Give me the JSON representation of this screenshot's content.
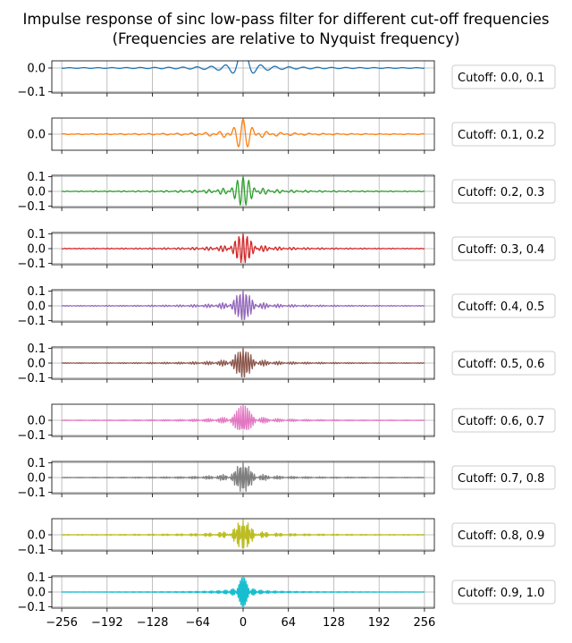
{
  "chart_data": {
    "type": "line",
    "title": "Impulse response of sinc low-pass filter for different cut-off frequencies\n(Frequencies are relative to Nyquist frequency)",
    "xlabel": "",
    "ylabel": "",
    "xlim": [
      -270,
      270
    ],
    "xticks": [
      -256,
      -192,
      -128,
      -64,
      0,
      64,
      128,
      192,
      256
    ],
    "xtick_labels": [
      "−256",
      "−192",
      "−128",
      "−64",
      "0",
      "64",
      "128",
      "192",
      "256"
    ],
    "grid": true,
    "legend_placement": "right",
    "n_taps_x_range": [
      -256,
      256
    ],
    "panels": [
      {
        "name": "Cutoff: 0.0, 0.1",
        "color": "#1f77b4",
        "band": [
          0.0,
          0.1
        ],
        "ylim": [
          -0.105,
          0.03
        ],
        "yticks": [
          0.0,
          -0.1
        ],
        "ytick_labels": [
          "0.0",
          "−0.1"
        ]
      },
      {
        "name": "Cutoff: 0.1, 0.2",
        "color": "#ff7f0e",
        "band": [
          0.1,
          0.2
        ],
        "ylim": [
          -0.105,
          0.105
        ],
        "yticks": [
          0.0
        ],
        "ytick_labels": [
          "0.0"
        ]
      },
      {
        "name": "Cutoff: 0.2, 0.3",
        "color": "#2ca02c",
        "band": [
          0.2,
          0.3
        ],
        "ylim": [
          -0.11,
          0.11
        ],
        "yticks": [
          0.1,
          0.0,
          -0.1
        ],
        "ytick_labels": [
          "0.1",
          "0.0",
          "−0.1"
        ]
      },
      {
        "name": "Cutoff: 0.3, 0.4",
        "color": "#d62728",
        "band": [
          0.3,
          0.4
        ],
        "ylim": [
          -0.11,
          0.11
        ],
        "yticks": [
          0.1,
          0.0,
          -0.1
        ],
        "ytick_labels": [
          "0.1",
          "0.0",
          "−0.1"
        ]
      },
      {
        "name": "Cutoff: 0.4, 0.5",
        "color": "#9467bd",
        "band": [
          0.4,
          0.5
        ],
        "ylim": [
          -0.11,
          0.11
        ],
        "yticks": [
          0.1,
          0.0,
          -0.1
        ],
        "ytick_labels": [
          "0.1",
          "0.0",
          "−0.1"
        ]
      },
      {
        "name": "Cutoff: 0.5, 0.6",
        "color": "#8c564b",
        "band": [
          0.5,
          0.6
        ],
        "ylim": [
          -0.11,
          0.11
        ],
        "yticks": [
          0.1,
          0.0,
          -0.1
        ],
        "ytick_labels": [
          "0.1",
          "0.0",
          "−0.1"
        ]
      },
      {
        "name": "Cutoff: 0.6, 0.7",
        "color": "#e377c2",
        "band": [
          0.6,
          0.7
        ],
        "ylim": [
          -0.11,
          0.11
        ],
        "yticks": [
          0.0,
          -0.1
        ],
        "ytick_labels": [
          "0.0",
          "−0.1"
        ]
      },
      {
        "name": "Cutoff: 0.7, 0.8",
        "color": "#7f7f7f",
        "band": [
          0.7,
          0.8
        ],
        "ylim": [
          -0.11,
          0.11
        ],
        "yticks": [
          0.1,
          0.0,
          -0.1
        ],
        "ytick_labels": [
          "0.1",
          "0.0",
          "−0.1"
        ]
      },
      {
        "name": "Cutoff: 0.8, 0.9",
        "color": "#bcbd22",
        "band": [
          0.8,
          0.9
        ],
        "ylim": [
          -0.11,
          0.11
        ],
        "yticks": [
          0.0,
          -0.1
        ],
        "ytick_labels": [
          "0.0",
          "−0.1"
        ]
      },
      {
        "name": "Cutoff: 0.9, 1.0",
        "color": "#17becf",
        "band": [
          0.9,
          1.0
        ],
        "ylim": [
          -0.11,
          0.11
        ],
        "yticks": [
          0.1,
          0.0,
          -0.1
        ],
        "ytick_labels": [
          "0.1",
          "0.0",
          "−0.1"
        ]
      }
    ]
  }
}
